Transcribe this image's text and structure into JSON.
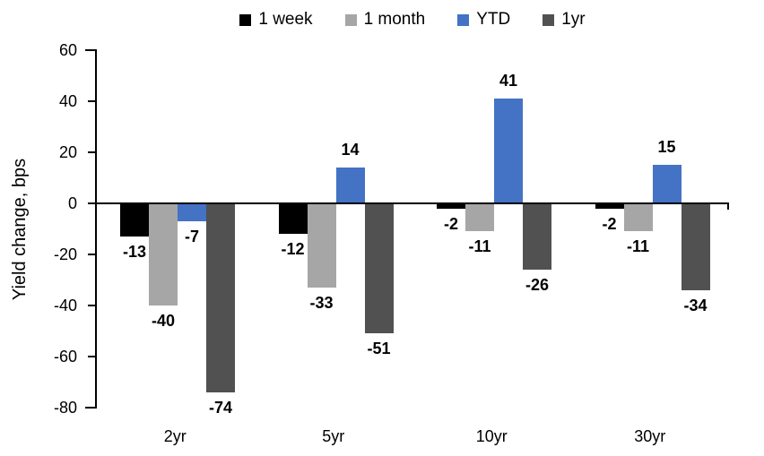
{
  "chart_data": {
    "type": "bar",
    "title": "",
    "xlabel": "",
    "ylabel": "Yield change, bps",
    "categories": [
      "2yr",
      "5yr",
      "10yr",
      "30yr"
    ],
    "series": [
      {
        "name": "1 week",
        "color": "#000000",
        "values": [
          -13,
          -12,
          -2,
          -2
        ]
      },
      {
        "name": "1 month",
        "color": "#A6A6A6",
        "values": [
          -40,
          -33,
          -11,
          -11
        ]
      },
      {
        "name": "YTD",
        "color": "#4472C4",
        "values": [
          -7,
          14,
          41,
          15
        ]
      },
      {
        "name": "1yr",
        "color": "#515151",
        "values": [
          -74,
          -51,
          -26,
          -34
        ]
      }
    ],
    "ylim": [
      -80,
      60
    ],
    "yticks": [
      60,
      40,
      20,
      0,
      -20,
      -40,
      -60,
      -80
    ],
    "grid": false,
    "legend_position": "top",
    "data_labels": true,
    "axis_color": "#000000"
  }
}
